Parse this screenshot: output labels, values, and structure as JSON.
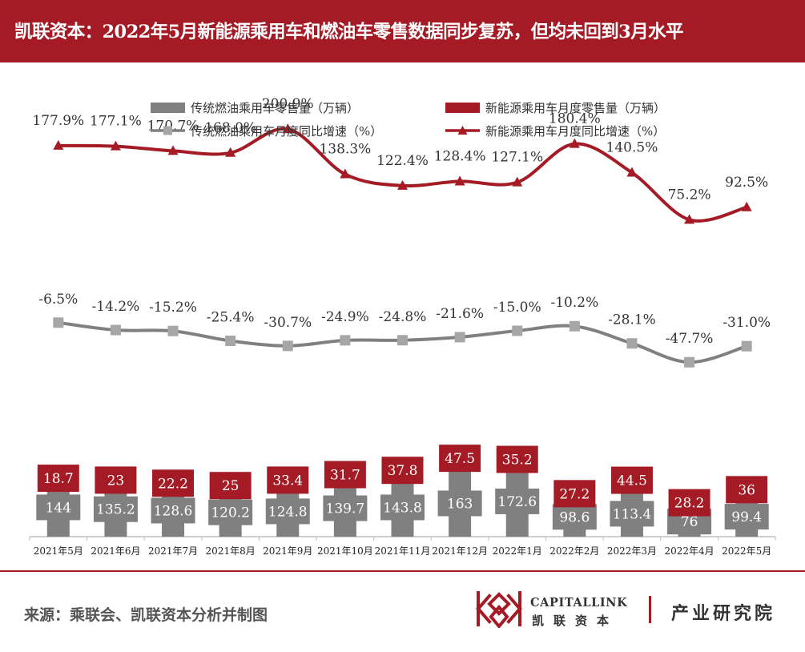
{
  "header": {
    "title": "凯联资本：2022年5月新能源乘用车和燃油车零售数据同步复苏，但均未回到3月水平"
  },
  "chart_data": {
    "type": "bar",
    "stacked": true,
    "categories": [
      "2021年5月",
      "2021年6月",
      "2021年7月",
      "2021年8月",
      "2021年9月",
      "2021年10月",
      "2021年11月",
      "2021年12月",
      "2022年1月",
      "2022年2月",
      "2022年3月",
      "2022年4月",
      "2022年5月"
    ],
    "series": [
      {
        "name": "传统燃油乘用车零售量（万辆）",
        "type": "bar",
        "color": "#808080",
        "values": [
          144,
          135.2,
          128.6,
          120.2,
          124.8,
          139.7,
          143.8,
          163,
          172.6,
          98.6,
          113.4,
          76,
          99.4
        ]
      },
      {
        "name": "新能源乘用车月度零售量（万辆）",
        "type": "bar",
        "color": "#a51b25",
        "values": [
          18.7,
          23,
          22.2,
          25,
          33.4,
          31.7,
          37.8,
          47.5,
          35.2,
          27.2,
          44.5,
          28.2,
          36
        ]
      },
      {
        "name": "传统燃油乘用车月度同比增速（%）",
        "type": "line",
        "marker": "square",
        "color": "#808080",
        "values": [
          -6.5,
          -14.2,
          -15.2,
          -25.4,
          -30.7,
          -24.9,
          -24.8,
          -21.6,
          -15.0,
          -10.2,
          -28.1,
          -47.7,
          -31.0
        ],
        "labels": [
          "-6.5%",
          "-14.2%",
          "-15.2%",
          "-25.4%",
          "-30.7%",
          "-24.9%",
          "-24.8%",
          "-21.6%",
          "-15.0%",
          "-10.2%",
          "-28.1%",
          "-47.7%",
          "-31.0%"
        ]
      },
      {
        "name": "新能源乘用车月度同比增速（%）",
        "type": "line",
        "marker": "triangle",
        "color": "#a51b25",
        "values": [
          177.9,
          177.1,
          170.7,
          168.0,
          200.9,
          138.3,
          122.4,
          128.4,
          127.1,
          180.4,
          140.5,
          75.2,
          92.5
        ],
        "labels": [
          "177.9%",
          "177.1%",
          "170.7%",
          "168.0%",
          "200.9%",
          "138.3%",
          "122.4%",
          "128.4%",
          "127.1%",
          "180.4%",
          "140.5%",
          "75.2%",
          "92.5%"
        ]
      }
    ],
    "legend_position": "top",
    "grid": false
  },
  "footer": {
    "source": "来源：乘联会、凯联资本分析并制图",
    "logo_en": "CAPITALLINK",
    "logo_cn": "凯联资本",
    "institute": "产业研究院"
  },
  "colors": {
    "brand_red": "#a51b25",
    "bar_gray": "#808080",
    "text_dark": "#333333"
  }
}
